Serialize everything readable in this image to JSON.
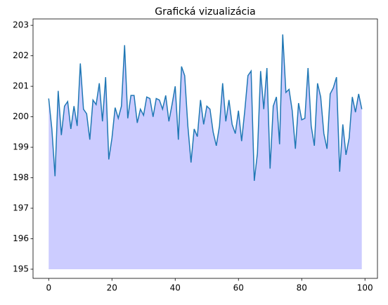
{
  "chart_data": {
    "type": "area",
    "title": "Grafická vizualizácia",
    "x": [
      0,
      1,
      2,
      3,
      4,
      5,
      6,
      7,
      8,
      9,
      10,
      11,
      12,
      13,
      14,
      15,
      16,
      17,
      18,
      19,
      20,
      21,
      22,
      23,
      24,
      25,
      26,
      27,
      28,
      29,
      30,
      31,
      32,
      33,
      34,
      35,
      36,
      37,
      38,
      39,
      40,
      41,
      42,
      43,
      44,
      45,
      46,
      47,
      48,
      49,
      50,
      51,
      52,
      53,
      54,
      55,
      56,
      57,
      58,
      59,
      60,
      61,
      62,
      63,
      64,
      65,
      66,
      67,
      68,
      69,
      70,
      71,
      72,
      73,
      74,
      75,
      76,
      77,
      78,
      79,
      80,
      81,
      82,
      83,
      84,
      85,
      86,
      87,
      88,
      89,
      90,
      91,
      92,
      93,
      94,
      95,
      96,
      97,
      98,
      99
    ],
    "values": [
      200.6,
      199.6,
      198.05,
      200.85,
      199.4,
      200.35,
      200.5,
      199.6,
      200.35,
      199.7,
      201.75,
      200.25,
      200.1,
      199.25,
      200.55,
      200.4,
      201.1,
      199.85,
      201.3,
      198.6,
      199.3,
      200.3,
      199.95,
      200.35,
      202.35,
      199.95,
      200.7,
      200.7,
      199.8,
      200.25,
      200.05,
      200.65,
      200.6,
      200.0,
      200.6,
      200.55,
      200.25,
      200.7,
      199.85,
      200.4,
      201.0,
      199.25,
      201.65,
      201.35,
      199.7,
      198.5,
      199.6,
      199.35,
      200.55,
      199.75,
      200.35,
      200.25,
      199.5,
      199.05,
      199.7,
      201.1,
      199.85,
      200.55,
      199.75,
      199.45,
      200.2,
      199.2,
      200.2,
      201.35,
      201.5,
      197.9,
      198.8,
      201.5,
      200.25,
      201.6,
      198.3,
      200.35,
      200.65,
      199.1,
      202.7,
      200.8,
      200.9,
      200.2,
      198.95,
      200.45,
      199.9,
      199.95,
      201.6,
      199.7,
      199.05,
      201.1,
      200.65,
      199.45,
      198.95,
      200.75,
      200.95,
      201.3,
      198.2,
      199.75,
      198.75,
      199.3,
      200.65,
      200.15,
      200.75,
      200.25
    ],
    "fill_to": 195,
    "color": "#1f77b4",
    "fill_color": "#ccccff",
    "xlim": [
      -4.95,
      103.95
    ],
    "xticks": [
      0,
      20,
      40,
      60,
      80,
      100
    ],
    "ylim": [
      194.7,
      203.21
    ],
    "yticks": [
      195,
      196,
      197,
      198,
      199,
      200,
      201,
      202,
      203
    ]
  }
}
